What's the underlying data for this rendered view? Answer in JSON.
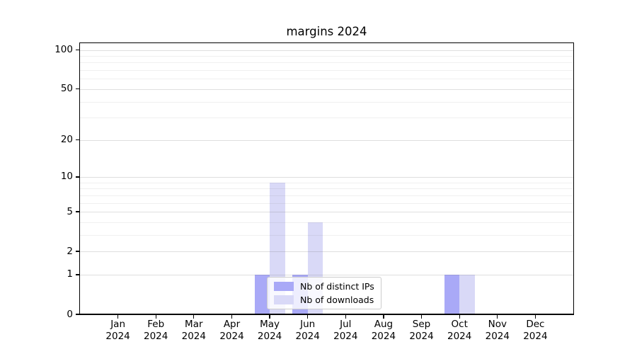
{
  "chart_data": {
    "type": "bar",
    "title": "margins 2024",
    "categories": [
      "Jan",
      "Feb",
      "Mar",
      "Apr",
      "May",
      "Jun",
      "Jul",
      "Aug",
      "Sep",
      "Oct",
      "Nov",
      "Dec"
    ],
    "category_year": "2024",
    "series": [
      {
        "name": "Nb of distinct IPs",
        "color": "#a9a9f7",
        "values": [
          0,
          0,
          0,
          0,
          1,
          1,
          0,
          0,
          0,
          1,
          0,
          0
        ]
      },
      {
        "name": "Nb of downloads",
        "color": "#d9d9f7",
        "values": [
          0,
          0,
          0,
          0,
          9,
          4,
          0,
          0,
          0,
          1,
          0,
          0
        ]
      }
    ],
    "y_axis": {
      "scale": "log1p",
      "ylim": [
        0,
        112
      ],
      "major_ticks": [
        0,
        1,
        2,
        5,
        10,
        20,
        50,
        100
      ],
      "minor_ticks": [
        3,
        4,
        6,
        7,
        8,
        9,
        30,
        40,
        60,
        70,
        80,
        90
      ]
    },
    "xlabel": "",
    "ylabel": "",
    "grid": "both",
    "legend": {
      "position": "lower-center",
      "entries": [
        "Nb of distinct IPs",
        "Nb of downloads"
      ]
    }
  },
  "colors": {
    "background": "#ffffff",
    "spine": "#000000",
    "bar_distinct_ips": "#a9a9f7",
    "bar_downloads": "#d9d9f7",
    "legend_border": "#cccccc"
  }
}
